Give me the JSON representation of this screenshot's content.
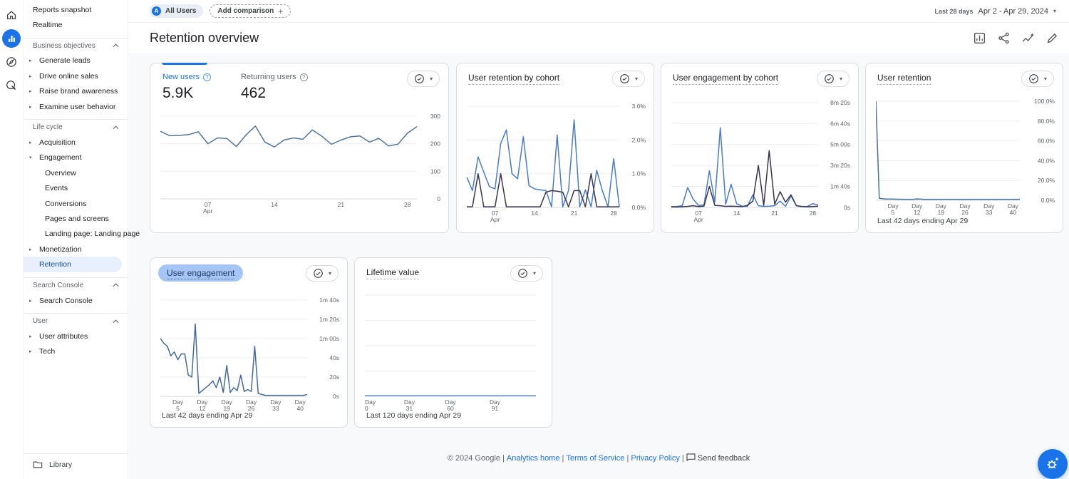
{
  "glyphs": {
    "caret": "▾",
    "plus": "+",
    "help": "?",
    "collapsed": "▸",
    "expanded": "▾",
    "sep": "|"
  },
  "rail": {
    "items": [
      {
        "name": "home"
      },
      {
        "name": "reports",
        "active": true
      },
      {
        "name": "explore"
      },
      {
        "name": "advertising"
      }
    ]
  },
  "sidebar": {
    "rows": [
      {
        "type": "item",
        "indent": 0,
        "label": "Reports snapshot"
      },
      {
        "type": "item",
        "indent": 0,
        "label": "Realtime"
      },
      {
        "type": "header",
        "label": "Business objectives"
      },
      {
        "type": "item",
        "indent": 1,
        "arrow": "collapsed",
        "label": "Generate leads"
      },
      {
        "type": "item",
        "indent": 1,
        "arrow": "collapsed",
        "label": "Drive online sales"
      },
      {
        "type": "item",
        "indent": 1,
        "arrow": "collapsed",
        "label": "Raise brand awareness"
      },
      {
        "type": "item",
        "indent": 1,
        "arrow": "collapsed",
        "label": "Examine user behavior"
      },
      {
        "type": "header",
        "label": "Life cycle"
      },
      {
        "type": "item",
        "indent": 1,
        "arrow": "collapsed",
        "label": "Acquisition"
      },
      {
        "type": "item",
        "indent": 1,
        "arrow": "expanded",
        "label": "Engagement"
      },
      {
        "type": "item",
        "indent": 2,
        "label": "Overview"
      },
      {
        "type": "item",
        "indent": 2,
        "label": "Events"
      },
      {
        "type": "item",
        "indent": 2,
        "label": "Conversions"
      },
      {
        "type": "item",
        "indent": 2,
        "label": "Pages and screens"
      },
      {
        "type": "item",
        "indent": 2,
        "label": "Landing page: Landing page"
      },
      {
        "type": "item",
        "indent": 1,
        "arrow": "collapsed",
        "label": "Monetization"
      },
      {
        "type": "item",
        "indent": 1,
        "selected": true,
        "label": "Retention"
      },
      {
        "type": "header",
        "label": "Search Console"
      },
      {
        "type": "item",
        "indent": 1,
        "arrow": "collapsed",
        "label": "Search Console"
      },
      {
        "type": "header",
        "label": "User"
      },
      {
        "type": "item",
        "indent": 1,
        "arrow": "collapsed",
        "label": "User attributes"
      },
      {
        "type": "item",
        "indent": 1,
        "arrow": "collapsed",
        "label": "Tech"
      }
    ],
    "library": "Library"
  },
  "topbar": {
    "all_users_chip": "All Users",
    "avatar_letter": "A",
    "add_comparison": "Add comparison",
    "date_range_label": "Last 28 days",
    "date_range": "Apr 2 - Apr 29, 2024"
  },
  "page": {
    "title": "Retention overview"
  },
  "cards": {
    "users_trend": {
      "metrics": [
        {
          "label": "New users",
          "value": "5.9K"
        },
        {
          "label": "Returning users",
          "value": "462"
        }
      ]
    },
    "captions": {
      "user_retention": "Last 42 days ending Apr 29",
      "user_engagement": "Last 42 days ending Apr 29",
      "lifetime_value": "Last 120 days ending Apr 29"
    }
  },
  "footer": {
    "copyright": "© 2024 Google",
    "links": [
      "Analytics home",
      "Terms of Service",
      "Privacy Policy"
    ],
    "feedback": "Send feedback"
  },
  "colors": {
    "accent_blue": "#1a73e8",
    "selected_pill": "#e8f0fe",
    "card_border": "#dadce0",
    "canvas_bg": "#f8f9fa",
    "line_steel_blue": "#54749c",
    "line_cohort_blue": "#4a7bc8",
    "line_cohort_dark": "#39344e"
  },
  "chart_data": [
    {
      "id": "users-trend",
      "type": "line",
      "title": "",
      "x_range": "Apr 2 - Apr 29, 2024",
      "ylim": [
        0,
        310
      ],
      "grid": true,
      "label_width": 30,
      "y_ticks": [
        {
          "v": 300,
          "label": "300"
        },
        {
          "v": 200,
          "label": "200"
        },
        {
          "v": 100,
          "label": "100"
        },
        {
          "v": 0,
          "label": "0"
        }
      ],
      "x_ticks": [
        {
          "i": 5,
          "lines": [
            "07",
            "Apr"
          ]
        },
        {
          "i": 12,
          "lines": [
            "14"
          ]
        },
        {
          "i": 19,
          "lines": [
            "21"
          ]
        },
        {
          "i": 26,
          "lines": [
            "28"
          ]
        }
      ],
      "series": [
        {
          "name": "New users",
          "color": "#54749c",
          "values": [
            245,
            229,
            230,
            233,
            243,
            200,
            221,
            219,
            190,
            231,
            264,
            206,
            188,
            213,
            221,
            216,
            250,
            227,
            198,
            213,
            225,
            228,
            206,
            219,
            192,
            198,
            238,
            262
          ]
        }
      ]
    },
    {
      "id": "user-retention-by-cohort",
      "type": "line",
      "title": "User retention by cohort",
      "x_range": "Apr 2 - Apr 29, 2024",
      "ylim": [
        0,
        3.3
      ],
      "grid": true,
      "label_width": 34,
      "y_ticks": [
        {
          "v": 3.0,
          "label": "3.0%"
        },
        {
          "v": 2.0,
          "label": "2.0%"
        },
        {
          "v": 1.0,
          "label": "1.0%"
        },
        {
          "v": 0,
          "label": "0.0%"
        }
      ],
      "x_ticks": [
        {
          "i": 5,
          "lines": [
            "07",
            "Apr"
          ]
        },
        {
          "i": 12,
          "lines": [
            "14"
          ]
        },
        {
          "i": 19,
          "lines": [
            "21"
          ]
        },
        {
          "i": 26,
          "lines": [
            "28"
          ]
        }
      ],
      "series": [
        {
          "color": "#4a7bc8",
          "values": [
            0.9,
            0.5,
            1.5,
            1.05,
            0.62,
            0.55,
            1.9,
            2.3,
            1.0,
            0.85,
            2.1,
            0.65,
            0.55,
            0.52,
            0.5,
            0.02,
            2.15,
            0.02,
            0.5,
            2.6,
            0.02,
            0.52,
            0.02,
            1.1,
            0.5,
            0.02,
            1.45,
            0.02
          ]
        },
        {
          "color": "#39344e",
          "values": [
            0.02,
            0.02,
            1.0,
            0.02,
            0.02,
            0.02,
            1.0,
            0.02,
            0.02,
            0.02,
            0.02,
            0.02,
            0.02,
            0.02,
            0.45,
            0.5,
            0.48,
            0.45,
            0.02,
            0.5,
            0.5,
            0.02,
            1.0,
            0.02,
            0.02,
            0.02,
            0.02,
            0.02
          ]
        }
      ]
    },
    {
      "id": "user-engagement-by-cohort",
      "type": "line",
      "title": "User engagement by cohort",
      "x_range": "Apr 2 - Apr 29, 2024",
      "ylim": [
        0,
        530
      ],
      "grid": true,
      "label_width": 42,
      "y_ticks": [
        {
          "v": 500,
          "label": "8m 20s"
        },
        {
          "v": 400,
          "label": "6m 40s"
        },
        {
          "v": 300,
          "label": "5m 00s"
        },
        {
          "v": 200,
          "label": "3m 20s"
        },
        {
          "v": 100,
          "label": "1m 40s"
        },
        {
          "v": 0,
          "label": "0s"
        }
      ],
      "x_ticks": [
        {
          "i": 5,
          "lines": [
            "07",
            "Apr"
          ]
        },
        {
          "i": 12,
          "lines": [
            "14"
          ]
        },
        {
          "i": 19,
          "lines": [
            "21"
          ]
        },
        {
          "i": 26,
          "lines": [
            "28"
          ]
        }
      ],
      "series": [
        {
          "color": "#4a7bc8",
          "values": [
            4,
            4,
            8,
            95,
            40,
            10,
            12,
            175,
            25,
            380,
            15,
            110,
            18,
            6,
            5,
            60,
            8,
            5,
            6,
            8,
            30,
            5,
            55,
            8,
            5,
            4,
            18,
            12
          ]
        },
        {
          "color": "#39344e",
          "values": [
            2,
            2,
            3,
            5,
            8,
            4,
            6,
            100,
            10,
            8,
            5,
            6,
            5,
            4,
            10,
            30,
            200,
            10,
            270,
            15,
            75,
            25,
            60,
            8,
            4,
            3,
            4,
            6
          ]
        }
      ]
    },
    {
      "id": "user-retention",
      "type": "line",
      "title": "User retention",
      "x_range": "Day 0 - Day 42",
      "ylim": [
        0,
        105
      ],
      "grid": true,
      "label_width": 46,
      "y_ticks": [
        {
          "v": 100,
          "label": "100.0%"
        },
        {
          "v": 80,
          "label": "80.0%"
        },
        {
          "v": 60,
          "label": "60.0%"
        },
        {
          "v": 40,
          "label": "40.0%"
        },
        {
          "v": 20,
          "label": "20.0%"
        },
        {
          "v": 0,
          "label": "0.0%"
        }
      ],
      "x_ticks": [
        {
          "i": 5,
          "lines": [
            "Day",
            "5"
          ]
        },
        {
          "i": 12,
          "lines": [
            "Day",
            "12"
          ]
        },
        {
          "i": 19,
          "lines": [
            "Day",
            "19"
          ]
        },
        {
          "i": 26,
          "lines": [
            "Day",
            "26"
          ]
        },
        {
          "i": 33,
          "lines": [
            "Day",
            "33"
          ]
        },
        {
          "i": 40,
          "lines": [
            "Day",
            "40"
          ]
        }
      ],
      "series": [
        {
          "color": "#4a6f99",
          "values": [
            100,
            2,
            1.5,
            1.3,
            1.2,
            1.2,
            1.1,
            1.1,
            1,
            1,
            1,
            1,
            1.4,
            1.2,
            1,
            1,
            1,
            1,
            1,
            1,
            1,
            1,
            1,
            1,
            1,
            1,
            1,
            1,
            1,
            1,
            1,
            1,
            1,
            1,
            1,
            1,
            1,
            1,
            1,
            1,
            1,
            1,
            1
          ]
        }
      ]
    },
    {
      "id": "user-engagement",
      "type": "line",
      "title": "User engagement",
      "x_range": "Day 0 - Day 42",
      "ylim": [
        0,
        105
      ],
      "grid": true,
      "label_width": 42,
      "y_ticks": [
        {
          "v": 100,
          "label": "1m 40s"
        },
        {
          "v": 80,
          "label": "1m 20s"
        },
        {
          "v": 60,
          "label": "1m 00s"
        },
        {
          "v": 40,
          "label": "40s"
        },
        {
          "v": 20,
          "label": "20s"
        },
        {
          "v": 0,
          "label": "0s"
        }
      ],
      "x_ticks": [
        {
          "i": 5,
          "lines": [
            "Day",
            "5"
          ]
        },
        {
          "i": 12,
          "lines": [
            "Day",
            "12"
          ]
        },
        {
          "i": 19,
          "lines": [
            "Day",
            "19"
          ]
        },
        {
          "i": 26,
          "lines": [
            "Day",
            "26"
          ]
        },
        {
          "i": 33,
          "lines": [
            "Day",
            "33"
          ]
        },
        {
          "i": 40,
          "lines": [
            "Day",
            "40"
          ]
        }
      ],
      "series": [
        {
          "color": "#44699c",
          "values": [
            60,
            55,
            52,
            42,
            46,
            38,
            44,
            44,
            22,
            20,
            75,
            3,
            6,
            9,
            12,
            16,
            9,
            20,
            4,
            32,
            4,
            9,
            6,
            22,
            5,
            7,
            5,
            52,
            3,
            2,
            1,
            1,
            1,
            1,
            1,
            1,
            1,
            1,
            1,
            1,
            1,
            1,
            2
          ]
        }
      ]
    },
    {
      "id": "lifetime-value",
      "type": "line",
      "title": "Lifetime value",
      "x_range": "Day 0 - Day 119",
      "ylim": [
        0,
        100
      ],
      "grid": true,
      "label_width": 8,
      "y_ticks": [
        {
          "v": 100,
          "label": ""
        },
        {
          "v": 75,
          "label": ""
        },
        {
          "v": 50,
          "label": ""
        },
        {
          "v": 25,
          "label": ""
        },
        {
          "v": 0,
          "label": ""
        }
      ],
      "x_ticks": [
        {
          "f": 0,
          "lines": [
            "Day",
            "0"
          ]
        },
        {
          "f": 0.26,
          "lines": [
            "Day",
            "31"
          ]
        },
        {
          "f": 0.5,
          "lines": [
            "Day",
            "60"
          ]
        },
        {
          "f": 0.76,
          "lines": [
            "Day",
            "91"
          ]
        }
      ],
      "series": [
        {
          "color": "#5a8fd6",
          "values": [
            0.6,
            0.6
          ]
        }
      ]
    }
  ]
}
